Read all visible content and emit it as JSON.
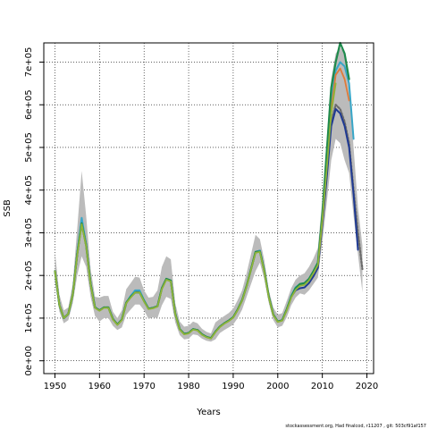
{
  "chart_data": {
    "type": "line",
    "xlabel": "Years",
    "ylabel": "SSB",
    "xlim": [
      1947.5,
      2021.5
    ],
    "ylim": [
      -30000,
      745000
    ],
    "grid": true,
    "x_ticks": [
      1950,
      1960,
      1970,
      1980,
      1990,
      2000,
      2010,
      2020
    ],
    "x_tick_labels": [
      "1950",
      "1960",
      "1970",
      "1980",
      "1990",
      "2000",
      "2010",
      "2020"
    ],
    "y_ticks": [
      0,
      100000,
      200000,
      300000,
      400000,
      500000,
      600000,
      700000
    ],
    "y_tick_labels": [
      "0e+00",
      "1e+05",
      "2e+05",
      "3e+05",
      "4e+05",
      "5e+05",
      "6e+05",
      "7e+05"
    ],
    "footer": "stockassessment.org, Had finalcod, r11207 , git: 503cf91af157",
    "confidence_band": {
      "color": "#bbbbbb",
      "x": [
        1950,
        1951,
        1952,
        1953,
        1954,
        1955,
        1956,
        1957,
        1958,
        1959,
        1960,
        1961,
        1962,
        1963,
        1964,
        1965,
        1966,
        1967,
        1968,
        1969,
        1970,
        1971,
        1972,
        1973,
        1974,
        1975,
        1976,
        1977,
        1978,
        1979,
        1980,
        1981,
        1982,
        1983,
        1984,
        1985,
        1986,
        1987,
        1988,
        1989,
        1990,
        1991,
        1992,
        1993,
        1994,
        1995,
        1996,
        1997,
        1998,
        1999,
        2000,
        2001,
        2002,
        2003,
        2004,
        2005,
        2006,
        2007,
        2008,
        2009,
        2010,
        2011,
        2012,
        2013,
        2014,
        2015,
        2016,
        2017,
        2018,
        2019
      ],
      "lower": [
        185000,
        115000,
        88000,
        95000,
        135000,
        200000,
        245000,
        220000,
        150000,
        105000,
        92000,
        100000,
        100000,
        82000,
        72000,
        78000,
        108000,
        120000,
        132000,
        132000,
        118000,
        98000,
        102000,
        100000,
        130000,
        150000,
        145000,
        90000,
        60000,
        50000,
        52000,
        62000,
        60000,
        52000,
        47000,
        45000,
        50000,
        65000,
        72000,
        78000,
        85000,
        100000,
        120000,
        150000,
        180000,
        210000,
        230000,
        190000,
        135000,
        95000,
        78000,
        82000,
        102000,
        130000,
        148000,
        158000,
        155000,
        165000,
        180000,
        195000,
        280000,
        370000,
        470000,
        520000,
        510000,
        470000,
        440000,
        340000,
        250000,
        160000
      ],
      "upper": [
        255000,
        155000,
        118000,
        125000,
        180000,
        310000,
        445000,
        340000,
        215000,
        150000,
        148000,
        152000,
        152000,
        115000,
        100000,
        118000,
        168000,
        182000,
        197000,
        195000,
        165000,
        148000,
        150000,
        165000,
        220000,
        245000,
        238000,
        135000,
        92000,
        80000,
        82000,
        92000,
        88000,
        75000,
        68000,
        64000,
        90000,
        98000,
        105000,
        112000,
        122000,
        142000,
        165000,
        205000,
        250000,
        295000,
        285000,
        235000,
        165000,
        125000,
        108000,
        112000,
        140000,
        170000,
        190000,
        200000,
        205000,
        220000,
        240000,
        265000,
        380000,
        520000,
        660000,
        720000,
        735000,
        720000,
        650000,
        500000,
        360000,
        270000
      ]
    },
    "series": [
      {
        "color": "#6b6b6b",
        "x": [
          1950,
          1951,
          1952,
          1953,
          1954,
          1955,
          1956,
          1957,
          1958,
          1959,
          1960,
          1961,
          1962,
          1963,
          1964,
          1965,
          1966,
          1967,
          1968,
          1969,
          1970,
          1971,
          1972,
          1973,
          1974,
          1975,
          1976,
          1977,
          1978,
          1979,
          1980,
          1981,
          1982,
          1983,
          1984,
          1985,
          1986,
          1987,
          1988,
          1989,
          1990,
          1991,
          1992,
          1993,
          1994,
          1995,
          1996,
          1997,
          1998,
          1999,
          2000,
          2001,
          2002,
          2003,
          2004,
          2005,
          2006,
          2007,
          2008,
          2009,
          2010,
          2011,
          2012,
          2013,
          2014,
          2015,
          2016,
          2017,
          2018,
          2019
        ],
        "values": [
          210000,
          130000,
          100000,
          110000,
          155000,
          250000,
          325000,
          270000,
          180000,
          125000,
          118000,
          125000,
          125000,
          98000,
          85000,
          96000,
          136000,
          150000,
          162000,
          162000,
          140000,
          122000,
          124000,
          128000,
          170000,
          192000,
          188000,
          110000,
          74000,
          63000,
          65000,
          74000,
          72000,
          62000,
          56000,
          53000,
          68000,
          80000,
          88000,
          94000,
          102000,
          120000,
          142000,
          175000,
          215000,
          255000,
          258000,
          210000,
          150000,
          108000,
          92000,
          95000,
          120000,
          150000,
          168000,
          178000,
          180000,
          190000,
          205000,
          225000,
          330000,
          440000,
          560000,
          600000,
          590000,
          560000,
          510000,
          400000,
          300000,
          215000
        ],
        "width": 2.2,
        "dash": "2,2"
      },
      {
        "color": "#1f3a93",
        "x": [
          1950,
          1951,
          1952,
          1953,
          1954,
          1955,
          1956,
          1957,
          1958,
          1959,
          1960,
          1961,
          1962,
          1963,
          1964,
          1965,
          1966,
          1967,
          1968,
          1969,
          1970,
          1971,
          1972,
          1973,
          1974,
          1975,
          1976,
          1977,
          1978,
          1979,
          1980,
          1981,
          1982,
          1983,
          1984,
          1985,
          1986,
          1987,
          1988,
          1989,
          1990,
          1991,
          1992,
          1993,
          1994,
          1995,
          1996,
          1997,
          1998,
          1999,
          2000,
          2001,
          2002,
          2003,
          2004,
          2005,
          2006,
          2007,
          2008,
          2009,
          2010,
          2011,
          2012,
          2013,
          2014,
          2015,
          2016,
          2017,
          2018
        ],
        "values": [
          210000,
          130000,
          100000,
          110000,
          155000,
          252000,
          330000,
          272000,
          180000,
          125000,
          118000,
          125000,
          125000,
          98000,
          85000,
          96000,
          136000,
          150000,
          162000,
          162000,
          140000,
          122000,
          124000,
          128000,
          170000,
          192000,
          188000,
          110000,
          74000,
          63000,
          65000,
          74000,
          72000,
          62000,
          56000,
          53000,
          68000,
          80000,
          88000,
          94000,
          102000,
          120000,
          142000,
          175000,
          215000,
          255000,
          258000,
          210000,
          150000,
          108000,
          92000,
          95000,
          120000,
          150000,
          165000,
          170000,
          172000,
          182000,
          198000,
          218000,
          320000,
          430000,
          550000,
          590000,
          580000,
          550000,
          500000,
          390000,
          260000
        ],
        "width": 2,
        "dash": ""
      },
      {
        "color": "#37a6c8",
        "x": [
          1950,
          1951,
          1952,
          1953,
          1954,
          1955,
          1956,
          1957,
          1958,
          1959,
          1960,
          1961,
          1962,
          1963,
          1964,
          1965,
          1966,
          1967,
          1968,
          1969,
          1970,
          1971,
          1972,
          1973,
          1974,
          1975,
          1976,
          1977,
          1978,
          1979,
          1980,
          1981,
          1982,
          1983,
          1984,
          1985,
          1986,
          1987,
          1988,
          1989,
          1990,
          1991,
          1992,
          1993,
          1994,
          1995,
          1996,
          1997,
          1998,
          1999,
          2000,
          2001,
          2002,
          2003,
          2004,
          2005,
          2006,
          2007,
          2008,
          2009,
          2010,
          2011,
          2012,
          2013,
          2014,
          2015,
          2016,
          2017
        ],
        "values": [
          210000,
          130000,
          100000,
          110000,
          155000,
          252000,
          335000,
          272000,
          180000,
          125000,
          118000,
          125000,
          125000,
          98000,
          85000,
          96000,
          136000,
          152000,
          165000,
          165000,
          142000,
          122000,
          124000,
          128000,
          170000,
          192000,
          188000,
          110000,
          74000,
          63000,
          65000,
          74000,
          72000,
          62000,
          56000,
          53000,
          68000,
          80000,
          88000,
          94000,
          102000,
          120000,
          142000,
          175000,
          215000,
          255000,
          258000,
          210000,
          150000,
          108000,
          92000,
          95000,
          120000,
          152000,
          172000,
          180000,
          182000,
          192000,
          208000,
          230000,
          340000,
          470000,
          610000,
          680000,
          700000,
          690000,
          650000,
          520000
        ],
        "width": 2,
        "dash": ""
      },
      {
        "color": "#e07b39",
        "x": [
          2008,
          2009,
          2010,
          2011,
          2012,
          2013,
          2014,
          2015,
          2016
        ],
        "values": [
          205000,
          225000,
          330000,
          460000,
          590000,
          670000,
          685000,
          660000,
          610000
        ],
        "width": 1.8,
        "dash": ""
      },
      {
        "color": "#1e8a4c",
        "x": [
          1950,
          1951,
          1952,
          1953,
          1954,
          1955,
          1956,
          1957,
          1958,
          1959,
          1960,
          1961,
          1962,
          1963,
          1964,
          1965,
          1966,
          1967,
          1968,
          1969,
          1970,
          1971,
          1972,
          1973,
          1974,
          1975,
          1976,
          1977,
          1978,
          1979,
          1980,
          1981,
          1982,
          1983,
          1984,
          1985,
          1986,
          1987,
          1988,
          1989,
          1990,
          1991,
          1992,
          1993,
          1994,
          1995,
          1996,
          1997,
          1998,
          1999,
          2000,
          2001,
          2002,
          2003,
          2004,
          2005,
          2006,
          2007,
          2008,
          2009,
          2010,
          2011,
          2012,
          2013,
          2014,
          2015,
          2016
        ],
        "values": [
          210000,
          130000,
          100000,
          110000,
          155000,
          250000,
          322000,
          270000,
          180000,
          125000,
          118000,
          125000,
          125000,
          98000,
          85000,
          96000,
          136000,
          150000,
          160000,
          160000,
          140000,
          122000,
          124000,
          128000,
          170000,
          192000,
          188000,
          110000,
          74000,
          63000,
          65000,
          74000,
          72000,
          62000,
          56000,
          53000,
          68000,
          80000,
          88000,
          94000,
          102000,
          120000,
          142000,
          175000,
          215000,
          255000,
          256000,
          210000,
          150000,
          108000,
          92000,
          95000,
          120000,
          150000,
          170000,
          180000,
          182000,
          192000,
          210000,
          230000,
          345000,
          490000,
          640000,
          700000,
          745000,
          720000,
          660000
        ],
        "width": 2.2,
        "dash": ""
      },
      {
        "color": "#8fb339",
        "x": [
          1950,
          1951,
          1952,
          1953,
          1954,
          1955,
          1956,
          1957,
          1958,
          1959,
          1960,
          1961,
          1962,
          1963,
          1964,
          1965,
          1966,
          1967,
          1968,
          1969,
          1970,
          1971,
          1972,
          1973,
          1974,
          1975,
          1976,
          1977,
          1978,
          1979,
          1980,
          1981,
          1982,
          1983,
          1984,
          1985,
          1986,
          1987,
          1988,
          1989,
          1990,
          1991,
          1992,
          1993,
          1994,
          1995,
          1996,
          1997,
          1998,
          1999,
          2000,
          2001,
          2002,
          2003,
          2004,
          2005,
          2006,
          2007,
          2008,
          2009,
          2010,
          2011,
          2012,
          2013
        ],
        "values": [
          210000,
          130000,
          100000,
          110000,
          155000,
          248000,
          320000,
          268000,
          178000,
          124000,
          117000,
          124000,
          124000,
          97000,
          84000,
          95000,
          135000,
          148000,
          160000,
          160000,
          139000,
          121000,
          123000,
          127000,
          168000,
          190000,
          186000,
          109000,
          73000,
          62000,
          64000,
          73000,
          71000,
          61000,
          55000,
          52000,
          67000,
          79000,
          87000,
          93000,
          101000,
          119000,
          141000,
          174000,
          214000,
          253000,
          255000,
          208000,
          148000,
          107000,
          91000,
          94000,
          118000,
          148000,
          166000,
          176000,
          178000,
          188000,
          205000,
          225000,
          330000,
          450000,
          580000,
          650000
        ],
        "width": 1.8,
        "dash": ""
      }
    ]
  }
}
